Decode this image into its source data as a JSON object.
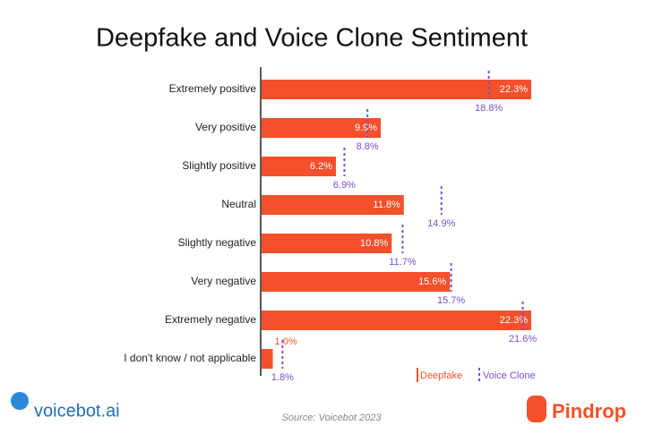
{
  "chart_data": {
    "type": "bar",
    "orientation": "horizontal",
    "title": "Deepfake and Voice Clone Sentiment",
    "categories": [
      "Extremely positive",
      "Very positive",
      "Slightly positive",
      "Neutral",
      "Slightly negative",
      "Very negative",
      "Extremely negative",
      "I don't know / not applicable"
    ],
    "series": [
      {
        "name": "Deepfake",
        "color": "#f4502b",
        "style": "bar",
        "values": [
          22.3,
          9.9,
          6.2,
          11.8,
          10.8,
          15.6,
          22.3,
          1.0
        ],
        "value_labels": [
          "22.3%",
          "9.9%",
          "6.2%",
          "11.8%",
          "10.8%",
          "15.6%",
          "22.3%",
          "1.0%"
        ]
      },
      {
        "name": "Voice Clone",
        "color": "#7a4fd0",
        "style": "dashed-marker",
        "values": [
          18.8,
          8.8,
          6.9,
          14.9,
          11.7,
          15.7,
          21.6,
          1.8
        ],
        "value_labels": [
          "18.8%",
          "8.8%",
          "6.9%",
          "14.9%",
          "11.7%",
          "15.7%",
          "21.6%",
          "1.8%"
        ]
      }
    ],
    "source": "Source: Voicebot 2023",
    "logos": [
      "voicebot.ai",
      "Pindrop"
    ]
  }
}
